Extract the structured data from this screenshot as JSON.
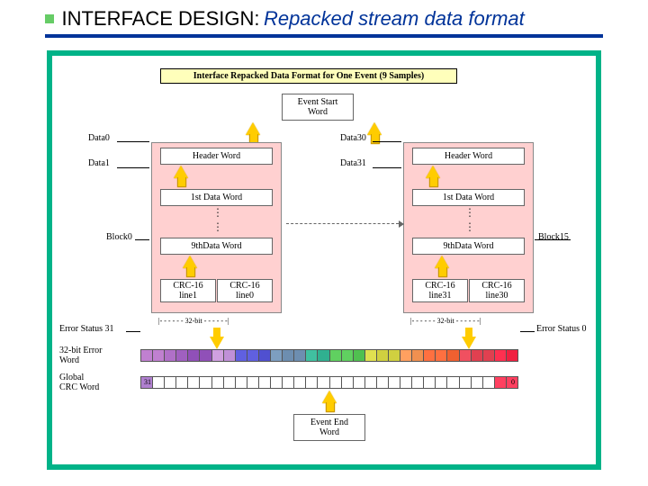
{
  "title": {
    "main": "INTERFACE DESIGN:",
    "sub": "Repacked stream data format"
  },
  "header_banner": "Interface Repacked Data Format for One Event (9 Samples)",
  "boxes": {
    "event_start": "Event Start\nWord",
    "header_word": "Header Word",
    "first_data_word": "1st Data Word",
    "ninth_data_word": "9thData Word",
    "crc_left": "CRC-16\nline1",
    "crc_right": "CRC-16\nline0",
    "crc_left2": "CRC-16\nline31",
    "crc_right2": "CRC-16\nline30",
    "event_end": "Event End\nWord",
    "bitwidth": "32-bit"
  },
  "labels": {
    "data0": "Data0",
    "data1": "Data1",
    "data30": "Data30",
    "data31": "Data31",
    "block0": "Block0",
    "block15": "Block15",
    "err31": "Error Status 31",
    "err0": "Error Status 0",
    "err_word": "32-bit Error\nWord",
    "crc_word": "Global\nCRC Word",
    "bit31": "31",
    "bit0": "0"
  },
  "colors": {
    "frame": "#00b388",
    "title_line": "#003399",
    "pink": "#ffd0d0",
    "yellow": "#ffffbb",
    "arrow": "#ffcc00",
    "palette": [
      "#c080d0",
      "#b070c8",
      "#a060c0",
      "#9050b8",
      "#d0a0e0",
      "#c090d8",
      "#6060e0",
      "#5050d0",
      "#7d9ec0",
      "#6d8eb0",
      "#40c0a0",
      "#30b090",
      "#60d060",
      "#50c050",
      "#e0e050",
      "#d0d040",
      "#ffa060",
      "#f09050",
      "#ff7040",
      "#f06030",
      "#f05060",
      "#e04050",
      "#ff3050",
      "#f02040"
    ],
    "strip_purple": "#b080d0",
    "strip_pink": "#ff4060"
  }
}
